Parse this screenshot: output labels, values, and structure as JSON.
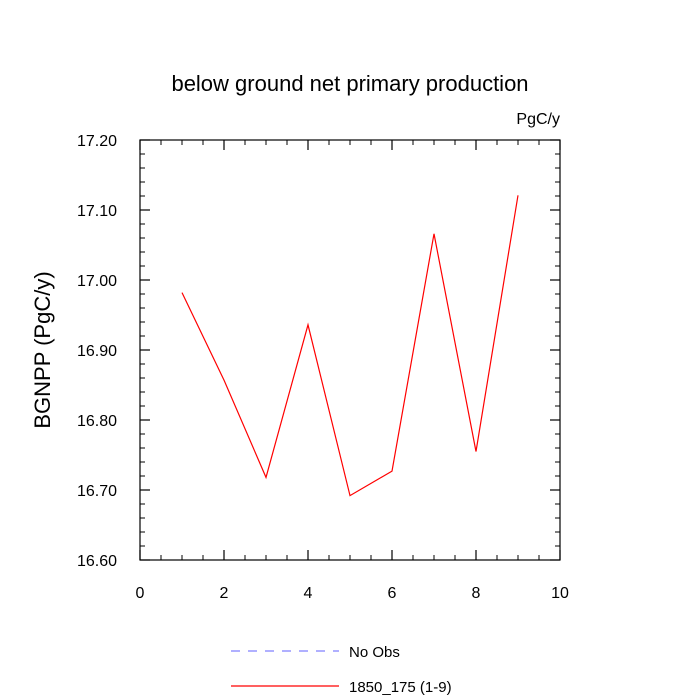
{
  "chart_data": {
    "type": "line",
    "title": "below ground net primary production",
    "units_label": "PgC/y",
    "xlabel": "",
    "ylabel": "BGNPP  (PgC/y)",
    "xlim": [
      0,
      10
    ],
    "ylim": [
      16.6,
      17.2
    ],
    "x_ticks": [
      0,
      2,
      4,
      6,
      8,
      10
    ],
    "x_tick_labels": [
      "0",
      "2",
      "4",
      "6",
      "8",
      "10"
    ],
    "y_ticks": [
      16.6,
      16.7,
      16.8,
      16.9,
      17.0,
      17.1,
      17.2
    ],
    "y_tick_labels": [
      "16.60",
      "16.70",
      "16.80",
      "16.90",
      "17.00",
      "17.10",
      "17.20"
    ],
    "grid": false,
    "series": [
      {
        "name": "1850_175 (1-9)",
        "color": "#ff0000",
        "dash": "solid",
        "x": [
          1,
          2,
          3,
          4,
          5,
          6,
          7,
          8,
          9
        ],
        "values": [
          16.982,
          16.857,
          16.718,
          16.936,
          16.692,
          16.727,
          17.066,
          16.755,
          17.121
        ]
      }
    ],
    "legend": {
      "placement": "bottom-center",
      "entries": [
        {
          "label": "No Obs",
          "color": "#8080ff",
          "dash": "dashed"
        },
        {
          "label": "1850_175 (1-9)",
          "color": "#ff0000",
          "dash": "solid"
        }
      ]
    }
  }
}
